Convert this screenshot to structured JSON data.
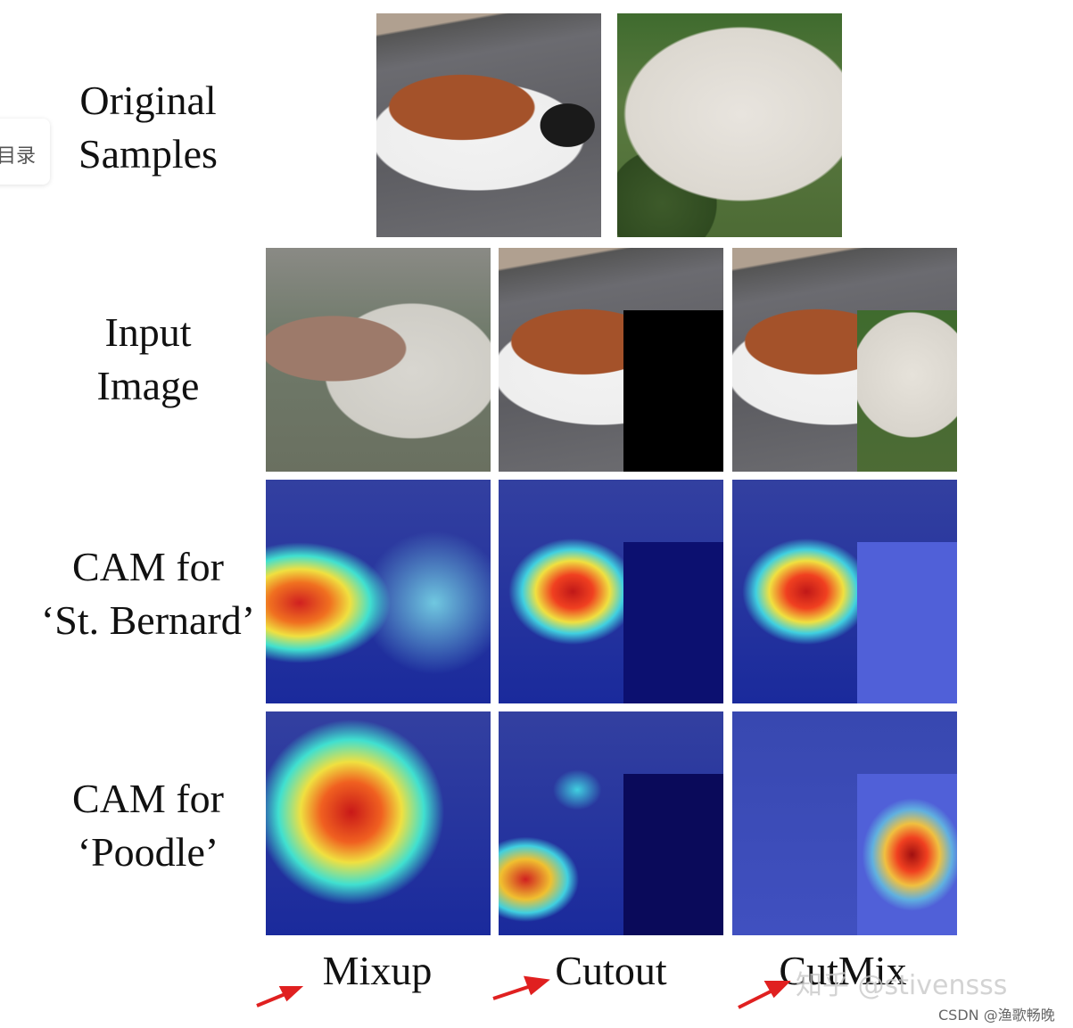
{
  "sidebar": {
    "label": "目录"
  },
  "figure": {
    "row_labels": [
      [
        "Original",
        "Samples"
      ],
      [
        "Input",
        "Image"
      ],
      [
        "CAM for",
        "‘St. Bernard’"
      ],
      [
        "CAM for",
        "‘Poodle’"
      ]
    ],
    "column_labels": [
      "Mixup",
      "Cutout",
      "CutMix"
    ]
  },
  "watermarks": {
    "zhihu": "知乎 @stivensss",
    "csdn": "CSDN @渔歌畅晚"
  }
}
